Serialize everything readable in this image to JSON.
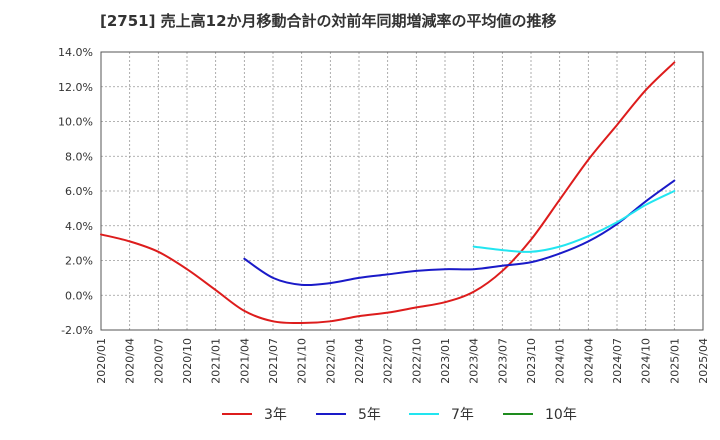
{
  "chart_data": {
    "type": "line",
    "title": "[2751]  売上高12か月移動合計の対前年同期増減率の平均値の推移",
    "xlabel": "",
    "ylabel": "",
    "ylim": [
      -2.0,
      14.0
    ],
    "yticks": [
      -2.0,
      0.0,
      2.0,
      4.0,
      6.0,
      8.0,
      10.0,
      12.0,
      14.0
    ],
    "ytick_labels": [
      "-2.0%",
      "0.0%",
      "2.0%",
      "4.0%",
      "6.0%",
      "8.0%",
      "10.0%",
      "12.0%",
      "14.0%"
    ],
    "xticks": [
      "2020/01",
      "2020/04",
      "2020/07",
      "2020/10",
      "2021/01",
      "2021/04",
      "2021/07",
      "2021/10",
      "2022/01",
      "2022/04",
      "2022/07",
      "2022/10",
      "2023/01",
      "2023/04",
      "2023/07",
      "2023/10",
      "2024/01",
      "2024/04",
      "2024/07",
      "2024/10",
      "2025/01",
      "2025/04"
    ],
    "x_start": "2020/01",
    "x_end": "2025/04",
    "grid": true,
    "legend_position": "bottom",
    "series": [
      {
        "name": "3年",
        "color": "#dd1c1c",
        "points": [
          {
            "x": "2020/01",
            "y": 3.5
          },
          {
            "x": "2020/04",
            "y": 3.1
          },
          {
            "x": "2020/07",
            "y": 2.5
          },
          {
            "x": "2020/10",
            "y": 1.5
          },
          {
            "x": "2021/01",
            "y": 0.3
          },
          {
            "x": "2021/04",
            "y": -0.9
          },
          {
            "x": "2021/07",
            "y": -1.5
          },
          {
            "x": "2021/10",
            "y": -1.6
          },
          {
            "x": "2022/01",
            "y": -1.5
          },
          {
            "x": "2022/04",
            "y": -1.2
          },
          {
            "x": "2022/07",
            "y": -1.0
          },
          {
            "x": "2022/10",
            "y": -0.7
          },
          {
            "x": "2023/01",
            "y": -0.4
          },
          {
            "x": "2023/04",
            "y": 0.2
          },
          {
            "x": "2023/07",
            "y": 1.4
          },
          {
            "x": "2023/10",
            "y": 3.2
          },
          {
            "x": "2024/01",
            "y": 5.5
          },
          {
            "x": "2024/04",
            "y": 7.8
          },
          {
            "x": "2024/07",
            "y": 9.8
          },
          {
            "x": "2024/10",
            "y": 11.8
          },
          {
            "x": "2025/01",
            "y": 13.4
          }
        ]
      },
      {
        "name": "5年",
        "color": "#1a1ac8",
        "points": [
          {
            "x": "2021/04",
            "y": 2.1
          },
          {
            "x": "2021/07",
            "y": 1.0
          },
          {
            "x": "2021/10",
            "y": 0.6
          },
          {
            "x": "2022/01",
            "y": 0.7
          },
          {
            "x": "2022/04",
            "y": 1.0
          },
          {
            "x": "2022/07",
            "y": 1.2
          },
          {
            "x": "2022/10",
            "y": 1.4
          },
          {
            "x": "2023/01",
            "y": 1.5
          },
          {
            "x": "2023/04",
            "y": 1.5
          },
          {
            "x": "2023/07",
            "y": 1.7
          },
          {
            "x": "2023/10",
            "y": 1.9
          },
          {
            "x": "2024/01",
            "y": 2.4
          },
          {
            "x": "2024/04",
            "y": 3.1
          },
          {
            "x": "2024/07",
            "y": 4.1
          },
          {
            "x": "2024/10",
            "y": 5.4
          },
          {
            "x": "2025/01",
            "y": 6.6
          }
        ]
      },
      {
        "name": "7年",
        "color": "#22e5f0",
        "points": [
          {
            "x": "2023/04",
            "y": 2.8
          },
          {
            "x": "2023/07",
            "y": 2.6
          },
          {
            "x": "2023/10",
            "y": 2.5
          },
          {
            "x": "2024/01",
            "y": 2.8
          },
          {
            "x": "2024/04",
            "y": 3.4
          },
          {
            "x": "2024/07",
            "y": 4.2
          },
          {
            "x": "2024/10",
            "y": 5.2
          },
          {
            "x": "2025/01",
            "y": 6.0
          }
        ]
      },
      {
        "name": "10年",
        "color": "#1e8c1e",
        "points": []
      }
    ]
  }
}
